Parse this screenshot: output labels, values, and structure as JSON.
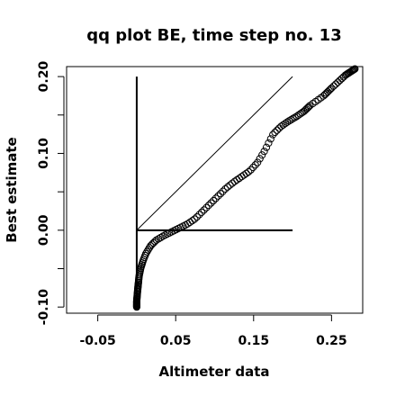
{
  "chart_data": {
    "type": "scatter",
    "title": "qq plot BE, time step no. 13",
    "xlabel": "Altimeter data",
    "ylabel": "Best estimate",
    "xlim": [
      -0.09,
      0.29
    ],
    "ylim": [
      -0.108,
      0.213
    ],
    "x_ticks": [
      -0.05,
      0.05,
      0.15,
      0.25
    ],
    "x_tick_labels": [
      "-0.05",
      "0.05",
      "0.15",
      "0.25"
    ],
    "y_ticks": [
      -0.1,
      -0.05,
      0.0,
      0.05,
      0.1,
      0.15,
      0.2
    ],
    "y_tick_labels": [
      "-0.10",
      "",
      "0.00",
      "",
      "0.10",
      "",
      "0.20"
    ],
    "grid": false,
    "reference_lines": [
      {
        "kind": "identity",
        "from": [
          0.0,
          0.0
        ],
        "to": [
          0.2,
          0.2
        ]
      },
      {
        "kind": "vertical",
        "x": 0.0,
        "from_y": -0.1,
        "to_y": 0.2
      },
      {
        "kind": "horizontal",
        "y": 0.0,
        "from_x": 0.0,
        "to_x": 0.2
      }
    ],
    "quantile_curve": [
      [
        0.0,
        -0.1
      ],
      [
        0.0,
        -0.092
      ],
      [
        0.001,
        -0.08
      ],
      [
        0.002,
        -0.07
      ],
      [
        0.003,
        -0.06
      ],
      [
        0.005,
        -0.05
      ],
      [
        0.008,
        -0.04
      ],
      [
        0.012,
        -0.03
      ],
      [
        0.018,
        -0.02
      ],
      [
        0.025,
        -0.013
      ],
      [
        0.035,
        -0.007
      ],
      [
        0.045,
        -0.002
      ],
      [
        0.055,
        0.003
      ],
      [
        0.065,
        0.008
      ],
      [
        0.075,
        0.015
      ],
      [
        0.085,
        0.025
      ],
      [
        0.095,
        0.035
      ],
      [
        0.105,
        0.045
      ],
      [
        0.115,
        0.055
      ],
      [
        0.125,
        0.063
      ],
      [
        0.135,
        0.07
      ],
      [
        0.145,
        0.077
      ],
      [
        0.155,
        0.088
      ],
      [
        0.165,
        0.105
      ],
      [
        0.175,
        0.125
      ],
      [
        0.185,
        0.135
      ],
      [
        0.195,
        0.142
      ],
      [
        0.205,
        0.148
      ],
      [
        0.215,
        0.155
      ],
      [
        0.222,
        0.162
      ],
      [
        0.24,
        0.175
      ],
      [
        0.25,
        0.185
      ],
      [
        0.268,
        0.202
      ],
      [
        0.28,
        0.21
      ]
    ],
    "sample_count": 150
  }
}
